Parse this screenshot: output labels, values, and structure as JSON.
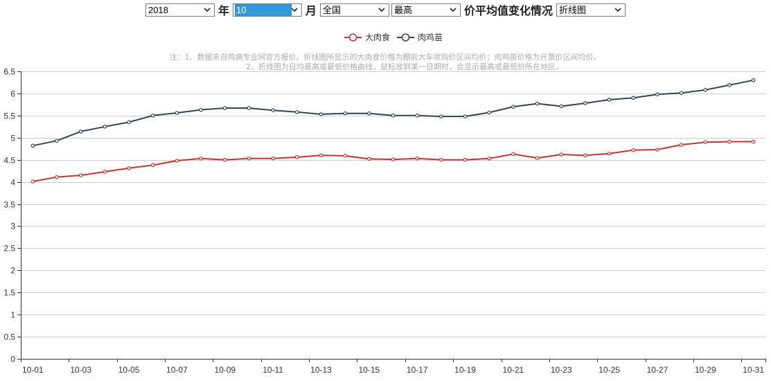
{
  "controls": {
    "year": "2018",
    "year_suffix": "年",
    "month": "10",
    "month_suffix": "月",
    "region": "全国",
    "stat": "最高",
    "title": "价平均值变化情况",
    "chart_type": "折线图"
  },
  "chart_data": {
    "type": "line",
    "notes": [
      "注：1、数据来自鸡病专业网官方报价。折线图所显示的大肉食价格为棚前大车收购价区间均价；肉鸡苗价格为开票价区间均价。",
      "2、折线图为日均最高或最低价格曲线，鼠标放到某一日期时，会显示最高或最低价所在地区。"
    ],
    "x": [
      "10-01",
      "10-02",
      "10-03",
      "10-04",
      "10-05",
      "10-06",
      "10-07",
      "10-08",
      "10-09",
      "10-10",
      "10-11",
      "10-12",
      "10-13",
      "10-14",
      "10-15",
      "10-16",
      "10-17",
      "10-18",
      "10-19",
      "10-20",
      "10-21",
      "10-22",
      "10-23",
      "10-24",
      "10-25",
      "10-26",
      "10-27",
      "10-28",
      "10-29",
      "10-30",
      "10-31"
    ],
    "x_tick_labels": [
      "10-01",
      "10-03",
      "10-05",
      "10-07",
      "10-09",
      "10-11",
      "10-13",
      "10-15",
      "10-17",
      "10-19",
      "10-21",
      "10-23",
      "10-25",
      "10-27",
      "10-29",
      "10-31"
    ],
    "ylim": [
      0,
      6.5
    ],
    "y_ticks": [
      "0",
      "0.5",
      "1",
      "1.5",
      "2",
      "2.5",
      "3",
      "3.5",
      "4",
      "4.5",
      "5",
      "5.5",
      "6",
      "6.5"
    ],
    "grid": true,
    "legend_position": "top-center",
    "series": [
      {
        "name": "大肉食",
        "color": "#c23531",
        "values": [
          4.01,
          4.11,
          4.15,
          4.23,
          4.31,
          4.38,
          4.48,
          4.53,
          4.5,
          4.53,
          4.53,
          4.56,
          4.6,
          4.59,
          4.52,
          4.51,
          4.53,
          4.5,
          4.5,
          4.53,
          4.63,
          4.54,
          4.62,
          4.6,
          4.64,
          4.72,
          4.73,
          4.84,
          4.9,
          4.91,
          4.91
        ]
      },
      {
        "name": "肉鸡苗",
        "color": "#2f4554",
        "values": [
          4.82,
          4.93,
          5.14,
          5.25,
          5.35,
          5.5,
          5.56,
          5.63,
          5.67,
          5.67,
          5.62,
          5.58,
          5.53,
          5.55,
          5.55,
          5.5,
          5.5,
          5.48,
          5.48,
          5.57,
          5.7,
          5.77,
          5.71,
          5.78,
          5.86,
          5.9,
          5.98,
          6.01,
          6.08,
          6.19,
          6.3
        ]
      }
    ]
  }
}
